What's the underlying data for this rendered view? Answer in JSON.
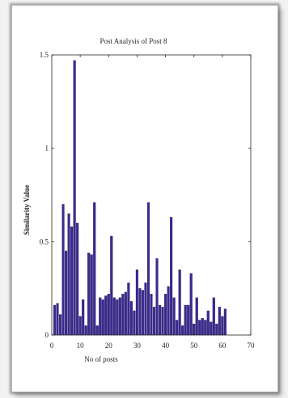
{
  "chart_data": {
    "type": "bar",
    "title": "Post Analysis of Post 8",
    "xlabel": "No of posts",
    "ylabel": "Similarity Value",
    "xlim": [
      0,
      70
    ],
    "ylim": [
      0,
      1.5
    ],
    "x_ticks": [
      "0",
      "10",
      "20",
      "30",
      "40",
      "50",
      "60",
      "70"
    ],
    "y_ticks": [
      "0",
      "0.5",
      "1",
      "1.5"
    ],
    "grid": false,
    "bar_color": "#3b2a8e",
    "categories": [
      1,
      2,
      3,
      4,
      5,
      6,
      7,
      8,
      9,
      10,
      11,
      12,
      13,
      14,
      15,
      16,
      17,
      18,
      19,
      20,
      21,
      22,
      23,
      24,
      25,
      26,
      27,
      28,
      29,
      30,
      31,
      32,
      33,
      34,
      35,
      36,
      37,
      38,
      39,
      40,
      41,
      42,
      43,
      44,
      45,
      46,
      47,
      48,
      49,
      50,
      51,
      52,
      53,
      54,
      55,
      56,
      57,
      58,
      59,
      60,
      61
    ],
    "values": [
      0.16,
      0.17,
      0.11,
      0.7,
      0.45,
      0.65,
      0.58,
      1.47,
      0.6,
      0.1,
      0.19,
      0.05,
      0.44,
      0.43,
      0.71,
      0.05,
      0.2,
      0.19,
      0.21,
      0.22,
      0.53,
      0.2,
      0.19,
      0.2,
      0.22,
      0.23,
      0.28,
      0.18,
      0.13,
      0.35,
      0.25,
      0.24,
      0.28,
      0.71,
      0.22,
      0.15,
      0.41,
      0.16,
      0.15,
      0.22,
      0.26,
      0.63,
      0.2,
      0.08,
      0.35,
      0.05,
      0.16,
      0.16,
      0.33,
      0.06,
      0.2,
      0.08,
      0.09,
      0.08,
      0.13,
      0.07,
      0.2,
      0.06,
      0.15,
      0.1,
      0.14
    ]
  }
}
